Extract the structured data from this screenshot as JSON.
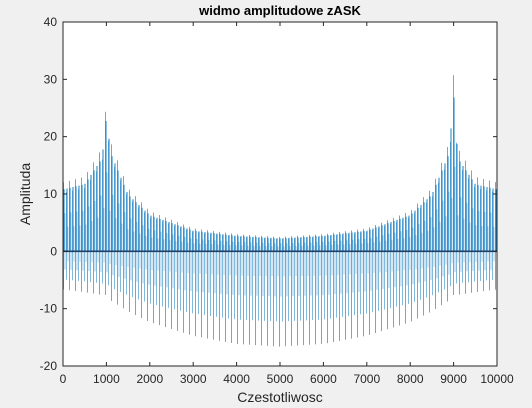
{
  "chart_data": {
    "type": "line",
    "title": "widmo amplitudowe zASK",
    "xlabel": "Czestotliwosc",
    "ylabel": "Amplituda",
    "xlim": [
      0,
      10000
    ],
    "ylim": [
      -20,
      40
    ],
    "xticks": [
      0,
      1000,
      2000,
      3000,
      4000,
      5000,
      6000,
      7000,
      8000,
      9000,
      10000
    ],
    "yticks": [
      -20,
      -10,
      0,
      10,
      20,
      30,
      40
    ],
    "grid": false,
    "line_color": "#0072bd",
    "axes_color": "#262626",
    "background_color": "#f0f0f0",
    "plot_background": "#ffffff",
    "envelope_points": [
      {
        "x": 0,
        "upper": 12,
        "lower": -7
      },
      {
        "x": 500,
        "upper": 13,
        "lower": -7.5
      },
      {
        "x": 900,
        "upper": 18,
        "lower": -8
      },
      {
        "x": 1000,
        "upper": 26,
        "lower": -8
      },
      {
        "x": 1100,
        "upper": 19,
        "lower": -9
      },
      {
        "x": 1500,
        "upper": 11,
        "lower": -11
      },
      {
        "x": 2000,
        "upper": 7,
        "lower": -13
      },
      {
        "x": 3000,
        "upper": 4,
        "lower": -15.5
      },
      {
        "x": 4000,
        "upper": 3,
        "lower": -17
      },
      {
        "x": 5000,
        "upper": 2.5,
        "lower": -17.5
      },
      {
        "x": 6000,
        "upper": 3,
        "lower": -17
      },
      {
        "x": 7000,
        "upper": 4,
        "lower": -15.5
      },
      {
        "x": 8000,
        "upper": 7,
        "lower": -13
      },
      {
        "x": 8500,
        "upper": 11,
        "lower": -11
      },
      {
        "x": 8900,
        "upper": 19,
        "lower": -9
      },
      {
        "x": 9000,
        "upper": 31,
        "lower": -8
      },
      {
        "x": 9100,
        "upper": 18,
        "lower": -8
      },
      {
        "x": 9500,
        "upper": 13,
        "lower": -7.5
      },
      {
        "x": 10000,
        "upper": 12,
        "lower": -7
      }
    ]
  }
}
